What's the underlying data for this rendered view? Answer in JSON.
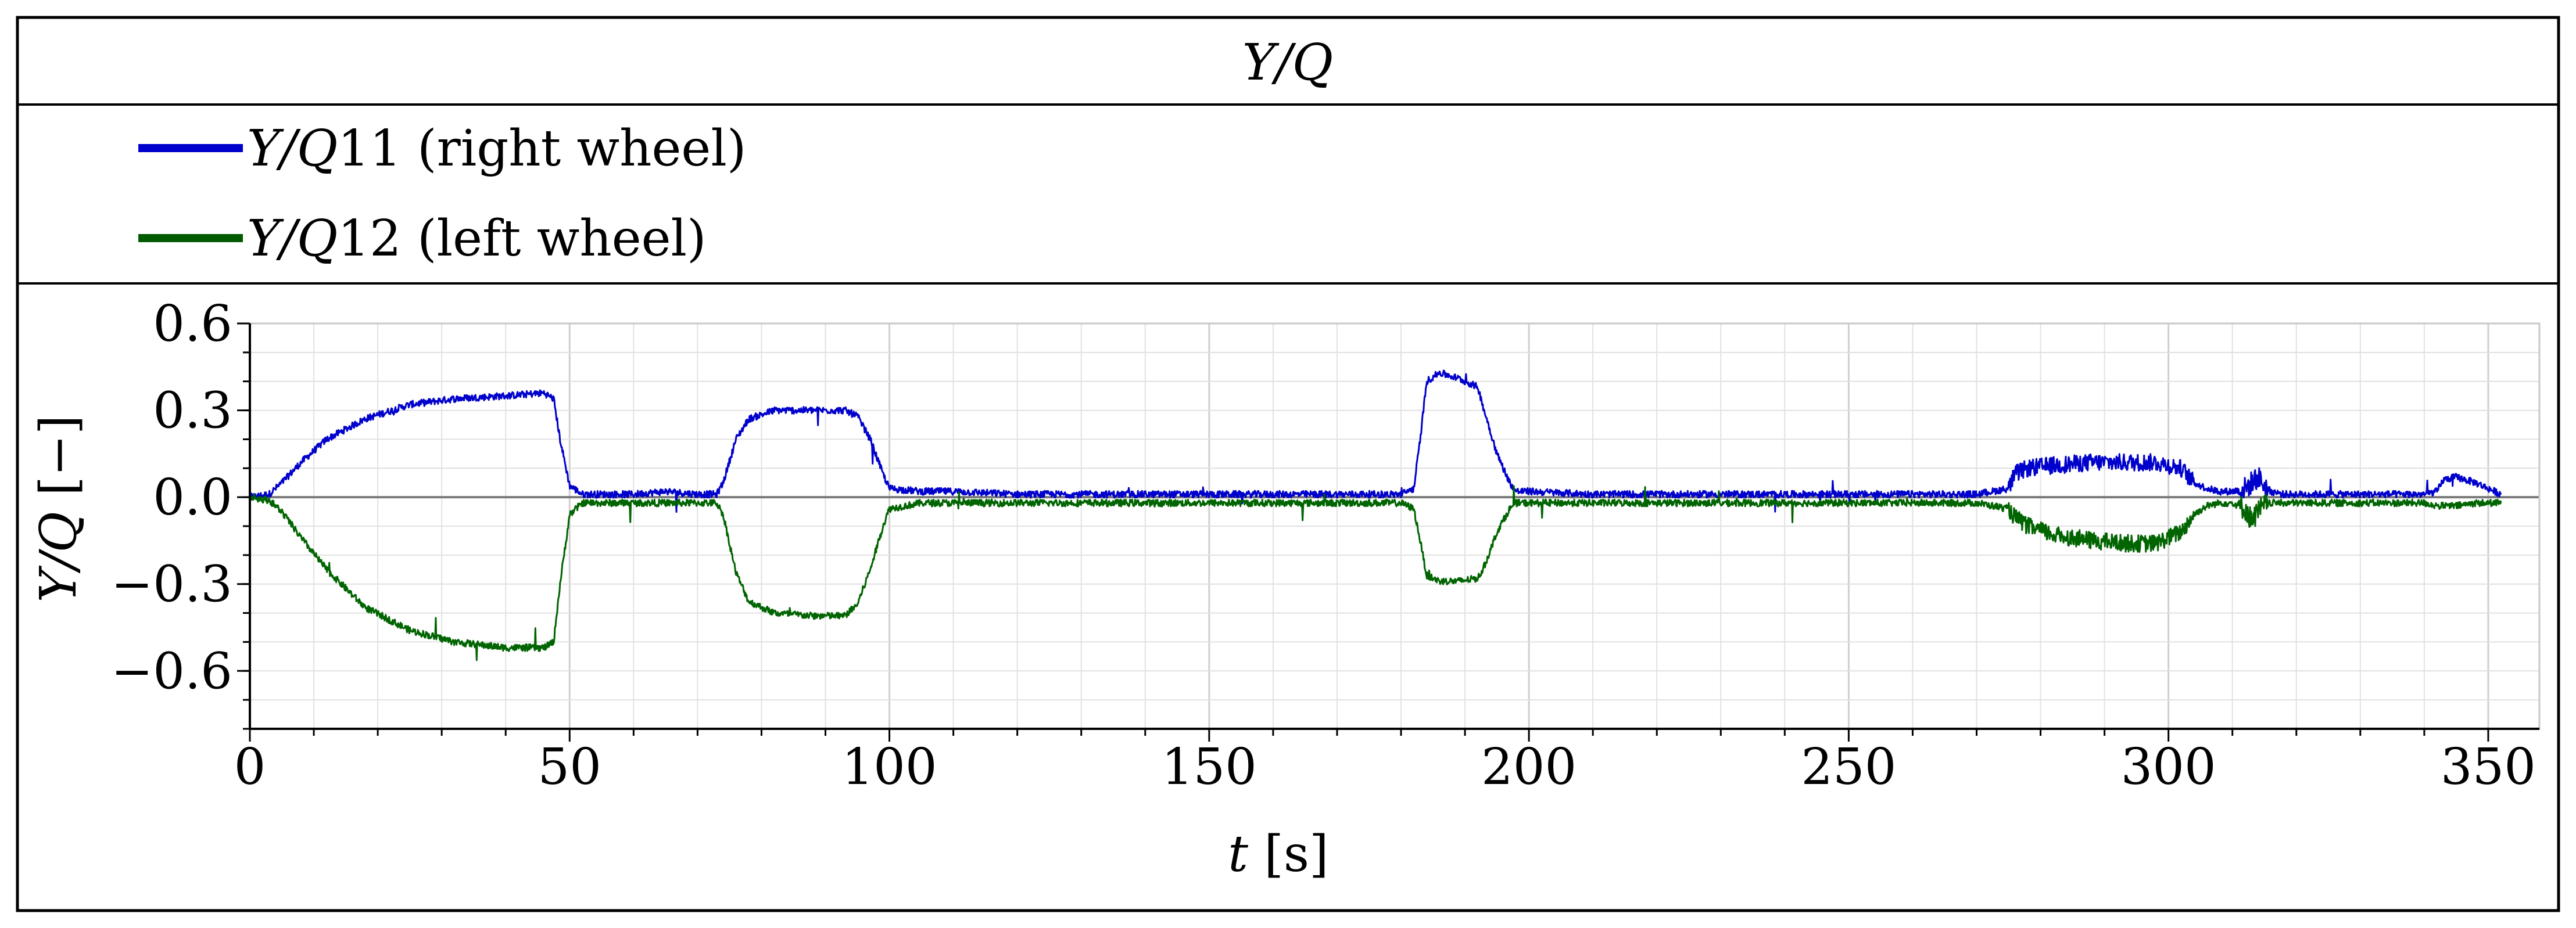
{
  "chart_data": {
    "type": "line",
    "title_italic": "Y/Q",
    "legend": [
      {
        "name_italic": "Y/Q",
        "name_rest": "11 (right wheel)",
        "color": "#0000cc"
      },
      {
        "name_italic": "Y/Q",
        "name_rest": "12 (left wheel)",
        "color": "#005a00"
      }
    ],
    "xlabel_italic": "t",
    "xlabel_rest": " [s]",
    "ylabel_italic": "Y/Q",
    "ylabel_rest": " [−]",
    "xlim": [
      0,
      358
    ],
    "ylim": [
      -0.8,
      0.6
    ],
    "xticks": [
      0,
      50,
      100,
      150,
      200,
      250,
      300,
      350
    ],
    "xtick_labels": [
      "0",
      "50",
      "100",
      "150",
      "200",
      "250",
      "300",
      "350"
    ],
    "yticks": [
      0.6,
      0.3,
      0.0,
      -0.3,
      -0.6
    ],
    "ytick_labels": [
      "0.6",
      "0.3",
      "0.0",
      "−0.3",
      "−0.6"
    ],
    "x_grid_step": 10,
    "y_grid_step": 0.1,
    "grid": true,
    "series": [
      {
        "name": "Y/Q11 (right wheel)",
        "color": "#0000cc",
        "x": [
          0,
          3,
          5,
          8,
          12,
          18,
          25,
          32,
          40,
          46,
          47.5,
          48.5,
          50,
          52,
          55,
          60,
          65,
          70,
          73,
          74,
          76,
          78,
          82,
          88,
          93,
          95,
          97,
          99,
          100,
          105,
          110,
          120,
          130,
          140,
          150,
          160,
          170,
          180,
          182,
          183,
          184,
          186,
          189,
          192,
          193,
          195,
          197,
          198,
          200,
          210,
          220,
          230,
          240,
          250,
          260,
          270,
          275,
          276,
          278,
          282,
          288,
          294,
          298,
          302,
          304,
          306,
          308,
          310,
          312,
          313,
          314,
          315,
          316,
          318,
          320,
          330,
          340,
          342,
          343,
          345,
          348,
          350,
          352
        ],
        "y": [
          0,
          0.01,
          0.05,
          0.12,
          0.2,
          0.27,
          0.32,
          0.34,
          0.35,
          0.36,
          0.34,
          0.2,
          0.04,
          0.01,
          0.01,
          0.01,
          0.02,
          0.01,
          0.01,
          0.05,
          0.2,
          0.27,
          0.3,
          0.3,
          0.3,
          0.28,
          0.2,
          0.08,
          0.03,
          0.02,
          0.02,
          0.01,
          0.01,
          0.01,
          0.01,
          0.01,
          0.01,
          0.01,
          0.03,
          0.2,
          0.4,
          0.43,
          0.41,
          0.38,
          0.3,
          0.15,
          0.05,
          0.02,
          0.02,
          0.01,
          0.01,
          0.01,
          0.01,
          0.01,
          0.01,
          0.01,
          0.03,
          0.08,
          0.1,
          0.11,
          0.12,
          0.12,
          0.12,
          0.1,
          0.05,
          0.03,
          0.02,
          0.02,
          0.03,
          0.05,
          0.07,
          0.04,
          0.02,
          0.01,
          0.01,
          0.01,
          0.01,
          0.02,
          0.06,
          0.07,
          0.05,
          0.03,
          0.01
        ]
      },
      {
        "name": "Y/Q12 (left wheel)",
        "color": "#006400",
        "x": [
          0,
          3,
          5,
          8,
          12,
          18,
          25,
          32,
          40,
          46,
          47.5,
          48.5,
          50,
          52,
          55,
          60,
          65,
          70,
          73,
          74,
          76,
          78,
          82,
          88,
          93,
          95,
          97,
          99,
          100,
          105,
          110,
          120,
          130,
          140,
          150,
          160,
          170,
          180,
          182,
          183,
          184,
          186,
          189,
          192,
          193,
          195,
          197,
          198,
          200,
          210,
          220,
          230,
          240,
          250,
          260,
          270,
          275,
          276,
          278,
          282,
          288,
          294,
          298,
          302,
          304,
          306,
          308,
          310,
          312,
          313,
          314,
          315,
          316,
          318,
          320,
          330,
          340,
          342,
          343,
          345,
          348,
          350,
          352
        ],
        "y": [
          0,
          -0.01,
          -0.05,
          -0.14,
          -0.25,
          -0.38,
          -0.46,
          -0.5,
          -0.52,
          -0.52,
          -0.5,
          -0.3,
          -0.06,
          -0.02,
          -0.02,
          -0.02,
          -0.02,
          -0.02,
          -0.02,
          -0.06,
          -0.26,
          -0.36,
          -0.4,
          -0.41,
          -0.41,
          -0.37,
          -0.25,
          -0.1,
          -0.04,
          -0.02,
          -0.02,
          -0.02,
          -0.02,
          -0.02,
          -0.02,
          -0.02,
          -0.02,
          -0.02,
          -0.04,
          -0.15,
          -0.27,
          -0.29,
          -0.29,
          -0.28,
          -0.24,
          -0.12,
          -0.04,
          -0.02,
          -0.02,
          -0.02,
          -0.02,
          -0.02,
          -0.02,
          -0.02,
          -0.02,
          -0.02,
          -0.04,
          -0.07,
          -0.1,
          -0.13,
          -0.15,
          -0.16,
          -0.16,
          -0.12,
          -0.06,
          -0.03,
          -0.02,
          -0.02,
          -0.04,
          -0.08,
          -0.05,
          -0.03,
          -0.02,
          -0.02,
          -0.02,
          -0.02,
          -0.02,
          -0.03,
          -0.03,
          -0.03,
          -0.02,
          -0.02,
          -0.02
        ]
      }
    ]
  }
}
